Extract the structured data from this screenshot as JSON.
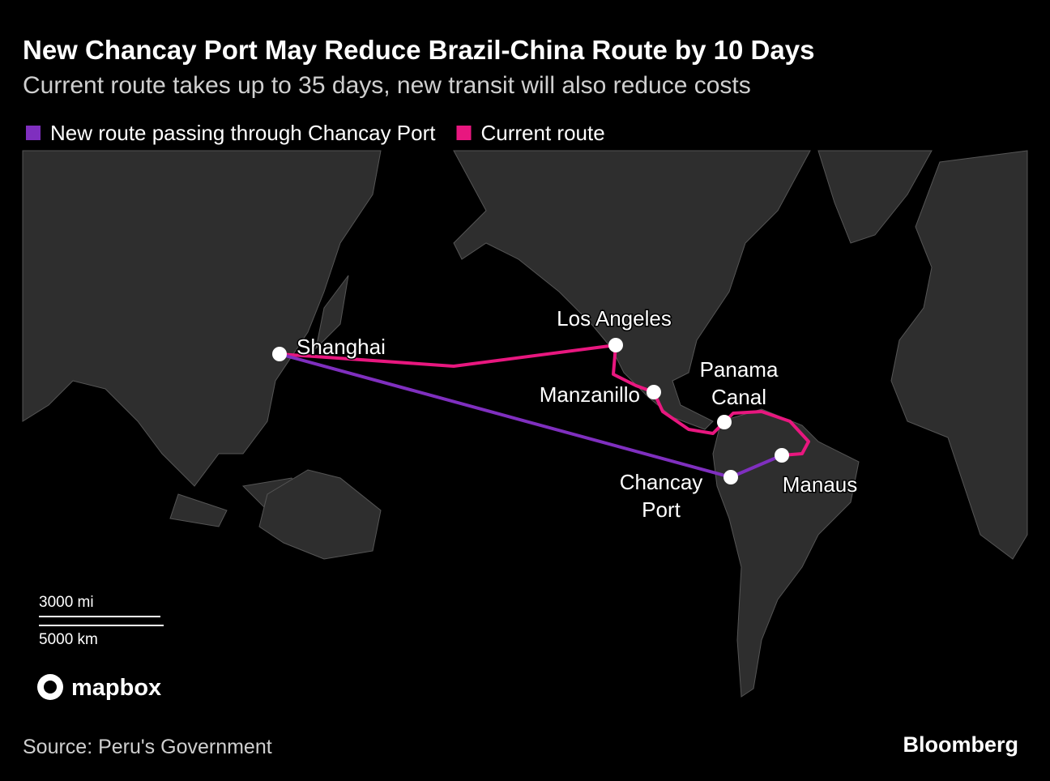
{
  "header": {
    "title": "New Chancay Port May Reduce Brazil-China Route by 10 Days",
    "subtitle": "Current route takes up to 35 days, new transit will also reduce costs"
  },
  "legend": [
    {
      "label": "New route passing through Chancay Port",
      "color": "#7f2fbf"
    },
    {
      "label": "Current route",
      "color": "#e8177f"
    }
  ],
  "places": [
    {
      "lines": [
        "Shanghai"
      ]
    },
    {
      "lines": [
        "Los Angeles"
      ]
    },
    {
      "lines": [
        "Manzanillo"
      ]
    },
    {
      "lines": [
        "Panama",
        "Canal"
      ]
    },
    {
      "lines": [
        "Chancay",
        "Port"
      ]
    },
    {
      "lines": [
        "Manaus"
      ]
    }
  ],
  "scale": {
    "miles": "3000 mi",
    "km": "5000 km"
  },
  "attribution": "mapbox",
  "source": "Source: Peru's Government",
  "brand": "Bloomberg"
}
